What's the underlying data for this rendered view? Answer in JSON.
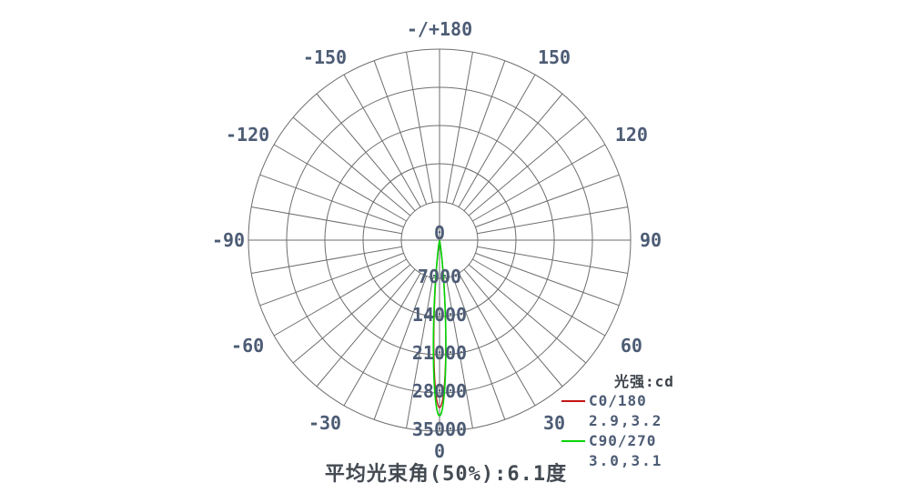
{
  "page": {
    "background": "#ffffff"
  },
  "chart_data": {
    "type": "polar",
    "subtype": "luminous-intensity-distribution",
    "unit": "cd",
    "caption": "平均光束角(50%):6.1度",
    "angle_step_deg": 10,
    "angle_labels": [
      {
        "deg": 180,
        "text": "-/+180"
      },
      {
        "deg": -150,
        "text": "-150"
      },
      {
        "deg": 150,
        "text": "150"
      },
      {
        "deg": -120,
        "text": "-120"
      },
      {
        "deg": 120,
        "text": "120"
      },
      {
        "deg": -90,
        "text": "-90"
      },
      {
        "deg": 90,
        "text": "90"
      },
      {
        "deg": -60,
        "text": "-60"
      },
      {
        "deg": 60,
        "text": "60"
      },
      {
        "deg": -30,
        "text": "-30"
      },
      {
        "deg": 30,
        "text": "30"
      },
      {
        "deg": 0,
        "text": "0"
      }
    ],
    "radial_ticks": [
      0,
      7000,
      14000,
      21000,
      28000,
      35000
    ],
    "radial_max": 35000,
    "series": [
      {
        "name": "C0/180",
        "color": "#c41414",
        "peak_cd": 30700,
        "half_beam_deg": [
          2.9,
          3.2
        ],
        "beam_label": "2.9,3.2"
      },
      {
        "name": "C90/270",
        "color": "#00d400",
        "peak_cd": 32200,
        "half_beam_deg": [
          3.0,
          3.1
        ],
        "beam_label": "3.0,3.1"
      }
    ],
    "legend": {
      "title": "光强:cd",
      "entries": [
        {
          "label": "C0/180",
          "values": "2.9,3.2",
          "color": "#c41414"
        },
        {
          "label": "C90/270",
          "values": "3.0,3.1",
          "color": "#00d400"
        }
      ]
    },
    "grid_color": "#6e6e6e",
    "text_color": "#4d5c75"
  }
}
